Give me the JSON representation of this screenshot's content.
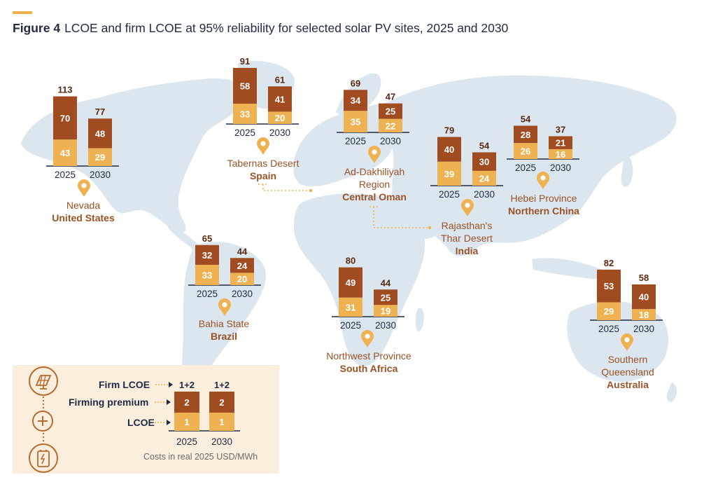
{
  "figure": {
    "label": "Figure 4",
    "title": "LCOE and firm LCOE at 95% reliability for selected solar PV sites, 2025 and 2030"
  },
  "colors": {
    "lcoe": "#efb253",
    "firming_premium": "#a04b20",
    "map": "#dbe6ee",
    "legend_bg": "#fbeedd",
    "location_text": "#9a5226",
    "pin": "#efb253"
  },
  "chart_data": {
    "type": "bar",
    "stacked": true,
    "unit": "Costs in real 2025 USD/MWh",
    "categories": [
      "2025",
      "2030"
    ],
    "series_names": [
      "LCOE",
      "Firming premium",
      "Firm LCOE"
    ],
    "sites": [
      {
        "region": "Nevada",
        "country": "United States",
        "lcoe": [
          43,
          29
        ],
        "firming_premium": [
          70,
          48
        ],
        "firm_lcoe": [
          113,
          77
        ]
      },
      {
        "region": "Tabernas Desert",
        "country": "Spain",
        "lcoe": [
          33,
          20
        ],
        "firming_premium": [
          58,
          41
        ],
        "firm_lcoe": [
          91,
          61
        ]
      },
      {
        "region": "Ad-Dakhiliyah Region",
        "country": "Central Oman",
        "lcoe": [
          35,
          22
        ],
        "firming_premium": [
          34,
          25
        ],
        "firm_lcoe": [
          69,
          47
        ]
      },
      {
        "region": "Rajasthan's Thar Desert",
        "country": "India",
        "lcoe": [
          39,
          24
        ],
        "firming_premium": [
          40,
          30
        ],
        "firm_lcoe": [
          79,
          54
        ]
      },
      {
        "region": "Hebei Province",
        "country": "Northern China",
        "lcoe": [
          26,
          16
        ],
        "firming_premium": [
          28,
          21
        ],
        "firm_lcoe": [
          54,
          37
        ]
      },
      {
        "region": "Bahia State",
        "country": "Brazil",
        "lcoe": [
          33,
          20
        ],
        "firming_premium": [
          32,
          24
        ],
        "firm_lcoe": [
          65,
          44
        ]
      },
      {
        "region": "Northwest Province",
        "country": "South Africa",
        "lcoe": [
          31,
          19
        ],
        "firming_premium": [
          49,
          25
        ],
        "firm_lcoe": [
          80,
          44
        ]
      },
      {
        "region": "Southern Queensland",
        "country": "Australia",
        "lcoe": [
          29,
          18
        ],
        "firming_premium": [
          53,
          40
        ],
        "firm_lcoe": [
          82,
          58
        ]
      }
    ]
  },
  "legend": {
    "firm_label": "Firm LCOE",
    "premium_label": "Firming premium",
    "lcoe_label": "LCOE",
    "firm_value": "1+2",
    "premium_value": "2",
    "lcoe_value": "1",
    "note": "Costs in real 2025 USD/MWh",
    "icons": [
      "solar-panel-icon",
      "plus-icon",
      "battery-icon"
    ]
  }
}
